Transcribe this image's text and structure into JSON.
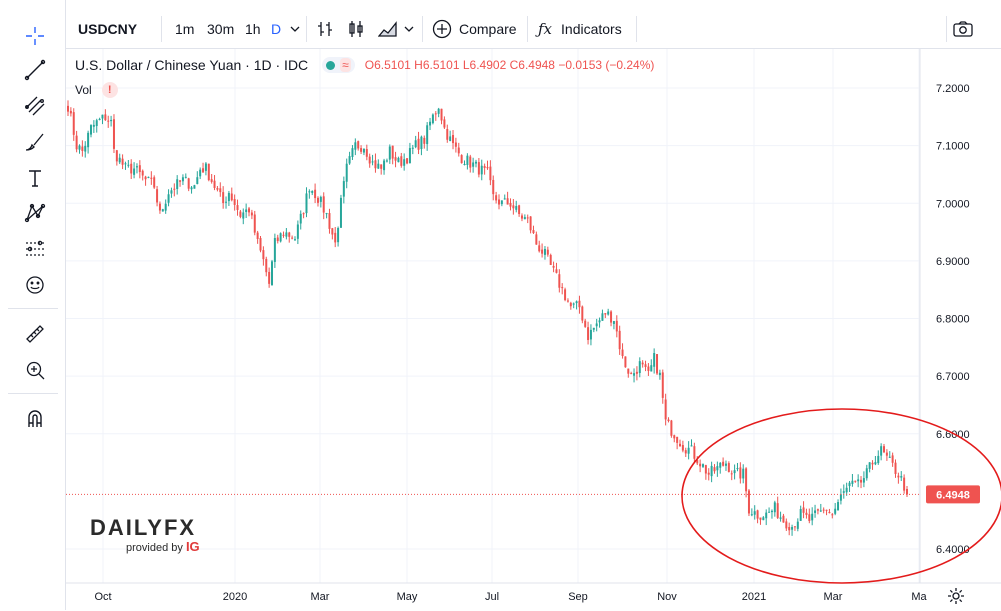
{
  "toolbar": {
    "symbol": "USDCNY",
    "intervals": [
      "1m",
      "30m",
      "1h",
      "D"
    ],
    "active_interval": "D",
    "compare_label": "Compare",
    "indicators_label": "Indicators"
  },
  "legend": {
    "title": "U.S. Dollar / Chinese Yuan · 1D · IDC",
    "open": "O6.5101",
    "high": "H6.5101",
    "low": "L6.4902",
    "close": "C6.4948",
    "change": "−0.0153 (−0.24%)",
    "vol_label": "Vol",
    "vol_warning": "!"
  },
  "branding": {
    "logo_main": "DAILY",
    "logo_fx": "FX",
    "provided_by": "provided by",
    "ig": "IG"
  },
  "colors": {
    "up": "#26a69a",
    "down": "#ef5350",
    "price_line": "#ef5350",
    "annotation": "#e31b1b"
  },
  "chart_data": {
    "type": "candlestick",
    "title": "U.S. Dollar / Chinese Yuan · 1D · IDC",
    "ylim": [
      6.36,
      7.24
    ],
    "y_ticks": [
      "7.2000",
      "7.1000",
      "7.0000",
      "6.9000",
      "6.8000",
      "6.7000",
      "6.6000",
      "6.4000"
    ],
    "x_ticks": [
      "Oct",
      "2020",
      "Mar",
      "May",
      "Jul",
      "Sep",
      "Nov",
      "2021",
      "Mar",
      "Ma"
    ],
    "last_price": "6.4948",
    "last_price_value": 6.4948,
    "close_path": [
      [
        0,
        7.17
      ],
      [
        3,
        7.1
      ],
      [
        5,
        7.09
      ],
      [
        8,
        7.13
      ],
      [
        10,
        7.14
      ],
      [
        13,
        7.15
      ],
      [
        15,
        7.14
      ],
      [
        16,
        7.09
      ],
      [
        20,
        7.06
      ],
      [
        23,
        7.06
      ],
      [
        27,
        7.04
      ],
      [
        30,
        7.03
      ],
      [
        32,
        6.98
      ],
      [
        35,
        7.02
      ],
      [
        40,
        7.04
      ],
      [
        44,
        7.03
      ],
      [
        46,
        7.06
      ],
      [
        48,
        7.06
      ],
      [
        51,
        7.03
      ],
      [
        54,
        7.0
      ],
      [
        56,
        7.02
      ],
      [
        60,
        6.98
      ],
      [
        63,
        6.99
      ],
      [
        66,
        6.93
      ],
      [
        68,
        6.9
      ],
      [
        70,
        6.86
      ],
      [
        72,
        6.93
      ],
      [
        75,
        6.95
      ],
      [
        79,
        6.94
      ],
      [
        82,
        6.99
      ],
      [
        84,
        7.03
      ],
      [
        87,
        7.01
      ],
      [
        90,
        6.98
      ],
      [
        93,
        6.93
      ],
      [
        95,
        7.0
      ],
      [
        97,
        7.06
      ],
      [
        100,
        7.1
      ],
      [
        103,
        7.1
      ],
      [
        106,
        7.07
      ],
      [
        109,
        7.06
      ],
      [
        112,
        7.09
      ],
      [
        115,
        7.07
      ],
      [
        118,
        7.08
      ],
      [
        121,
        7.1
      ],
      [
        124,
        7.11
      ],
      [
        126,
        7.14
      ],
      [
        128,
        7.16
      ],
      [
        129,
        7.17
      ],
      [
        131,
        7.13
      ],
      [
        134,
        7.1
      ],
      [
        137,
        7.08
      ],
      [
        140,
        7.07
      ],
      [
        143,
        7.06
      ],
      [
        146,
        7.05
      ],
      [
        148,
        7.01
      ],
      [
        151,
        7.0
      ],
      [
        154,
        7.0
      ],
      [
        157,
        6.98
      ],
      [
        160,
        6.97
      ],
      [
        163,
        6.93
      ],
      [
        166,
        6.91
      ],
      [
        169,
        6.88
      ],
      [
        172,
        6.85
      ],
      [
        175,
        6.82
      ],
      [
        178,
        6.82
      ],
      [
        181,
        6.77
      ],
      [
        184,
        6.79
      ],
      [
        187,
        6.81
      ],
      [
        190,
        6.8
      ],
      [
        193,
        6.73
      ],
      [
        196,
        6.7
      ],
      [
        199,
        6.72
      ],
      [
        202,
        6.7
      ],
      [
        204,
        6.73
      ],
      [
        206,
        6.7
      ],
      [
        208,
        6.62
      ],
      [
        211,
        6.6
      ],
      [
        214,
        6.58
      ],
      [
        217,
        6.57
      ],
      [
        220,
        6.55
      ],
      [
        223,
        6.53
      ],
      [
        226,
        6.54
      ],
      [
        229,
        6.55
      ],
      [
        232,
        6.53
      ],
      [
        235,
        6.53
      ],
      [
        237,
        6.47
      ],
      [
        240,
        6.46
      ],
      [
        243,
        6.46
      ],
      [
        246,
        6.47
      ],
      [
        249,
        6.45
      ],
      [
        252,
        6.44
      ],
      [
        255,
        6.46
      ],
      [
        258,
        6.45
      ],
      [
        261,
        6.46
      ],
      [
        264,
        6.47
      ],
      [
        266,
        6.46
      ],
      [
        269,
        6.49
      ],
      [
        272,
        6.51
      ],
      [
        275,
        6.51
      ],
      [
        278,
        6.53
      ],
      [
        281,
        6.56
      ],
      [
        283,
        6.57
      ],
      [
        286,
        6.55
      ],
      [
        289,
        6.53
      ],
      [
        292,
        6.5
      ]
    ]
  },
  "annotation": {
    "shape": "ellipse"
  }
}
